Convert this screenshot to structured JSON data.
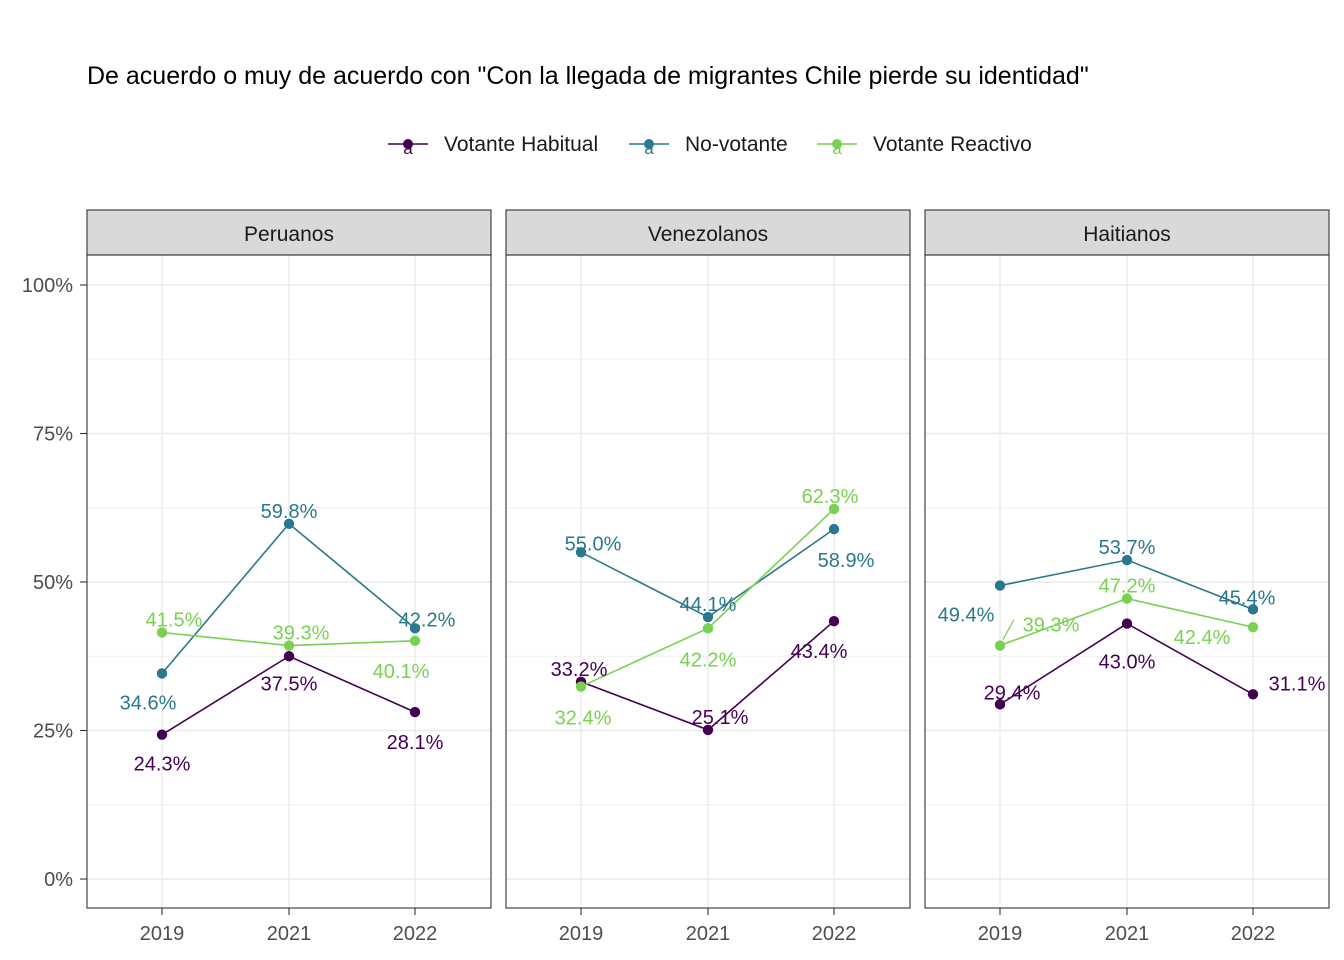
{
  "chart_data": {
    "type": "line",
    "title": "De acuerdo o muy de acuerdo con \"Con la llegada de migrantes Chile pierde su identidad\"",
    "xlabel": "",
    "ylabel": "",
    "x": [
      "2019",
      "2021",
      "2022"
    ],
    "ylim": [
      0,
      1
    ],
    "y_ticks": [
      "0%",
      "25%",
      "50%",
      "75%",
      "100%"
    ],
    "grid": true,
    "legend_position": "top",
    "legend_key_glyph": "a",
    "series_order": [
      "Votante Habitual",
      "No-votante",
      "Votante Reactivo"
    ],
    "colors": {
      "Votante Habitual": "#440154",
      "No-votante": "#2A788E",
      "Votante Reactivo": "#7AD151"
    },
    "panels": [
      {
        "name": "Peruanos",
        "series": [
          {
            "name": "Votante Habitual",
            "values": [
              0.243,
              0.375,
              0.281
            ],
            "labels": [
              "24.3%",
              "37.5%",
              "28.1%"
            ]
          },
          {
            "name": "No-votante",
            "values": [
              0.346,
              0.598,
              0.422
            ],
            "labels": [
              "34.6%",
              "59.8%",
              "42.2%"
            ]
          },
          {
            "name": "Votante Reactivo",
            "values": [
              0.415,
              0.393,
              0.401
            ],
            "labels": [
              "41.5%",
              "39.3%",
              "40.1%"
            ]
          }
        ]
      },
      {
        "name": "Venezolanos",
        "series": [
          {
            "name": "Votante Habitual",
            "values": [
              0.332,
              0.251,
              0.434
            ],
            "labels": [
              "33.2%",
              "25.1%",
              "43.4%"
            ]
          },
          {
            "name": "No-votante",
            "values": [
              0.55,
              0.441,
              0.589
            ],
            "labels": [
              "55.0%",
              "44.1%",
              "58.9%"
            ]
          },
          {
            "name": "Votante Reactivo",
            "values": [
              0.324,
              0.422,
              0.623
            ],
            "labels": [
              "32.4%",
              "42.2%",
              "62.3%"
            ]
          }
        ]
      },
      {
        "name": "Haitianos",
        "series": [
          {
            "name": "Votante Habitual",
            "values": [
              0.294,
              0.43,
              0.311
            ],
            "labels": [
              "29.4%",
              "43.0%",
              "31.1%"
            ]
          },
          {
            "name": "No-votante",
            "values": [
              0.494,
              0.537,
              0.454
            ],
            "labels": [
              "49.4%",
              "53.7%",
              "45.4%"
            ]
          },
          {
            "name": "Votante Reactivo",
            "values": [
              0.393,
              0.472,
              0.424
            ],
            "labels": [
              "39.3%",
              "47.2%",
              "42.4%"
            ]
          }
        ]
      }
    ]
  }
}
